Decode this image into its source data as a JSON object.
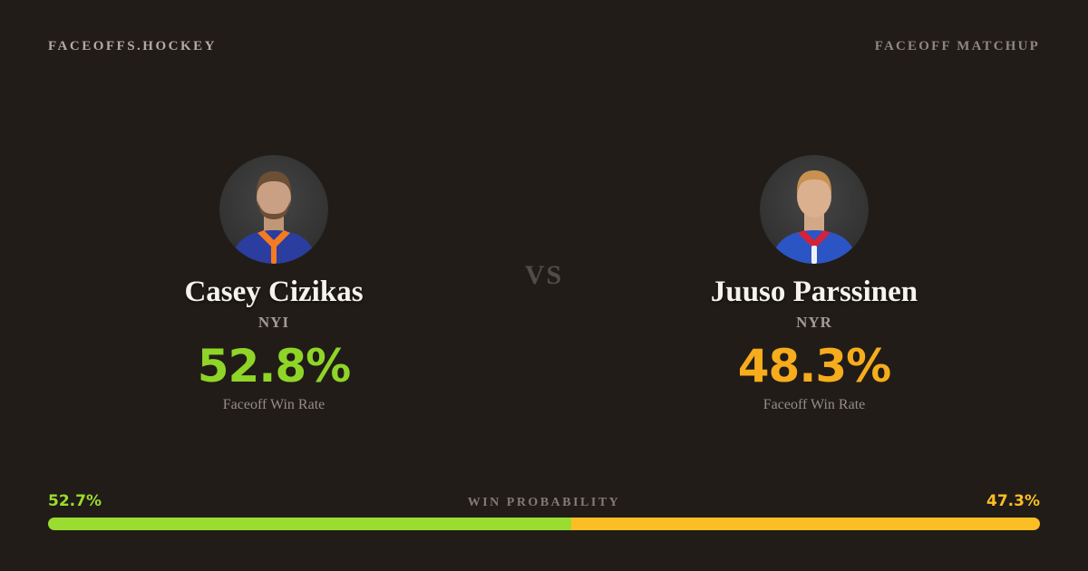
{
  "card": {
    "background": "#211c18",
    "brand": "FACEOFFS.HOCKEY",
    "context_label": "FACEOFF MATCHUP",
    "vs_label": "VS"
  },
  "players": {
    "left": {
      "name": "Casey Cizikas",
      "team": "NYI",
      "win_rate": "52.8%",
      "win_rate_label": "Faceoff Win Rate",
      "accent_color": "#8fd527"
    },
    "right": {
      "name": "Juuso Parssinen",
      "team": "NYR",
      "win_rate": "48.3%",
      "win_rate_label": "Faceoff Win Rate",
      "accent_color": "#f6ac1c"
    }
  },
  "win_probability": {
    "label": "WIN PROBABILITY",
    "left": {
      "text": "52.7%",
      "value": 52.7,
      "color": "#9bdc30"
    },
    "right": {
      "text": "47.3%",
      "value": 47.3,
      "color": "#fbbe24"
    }
  }
}
